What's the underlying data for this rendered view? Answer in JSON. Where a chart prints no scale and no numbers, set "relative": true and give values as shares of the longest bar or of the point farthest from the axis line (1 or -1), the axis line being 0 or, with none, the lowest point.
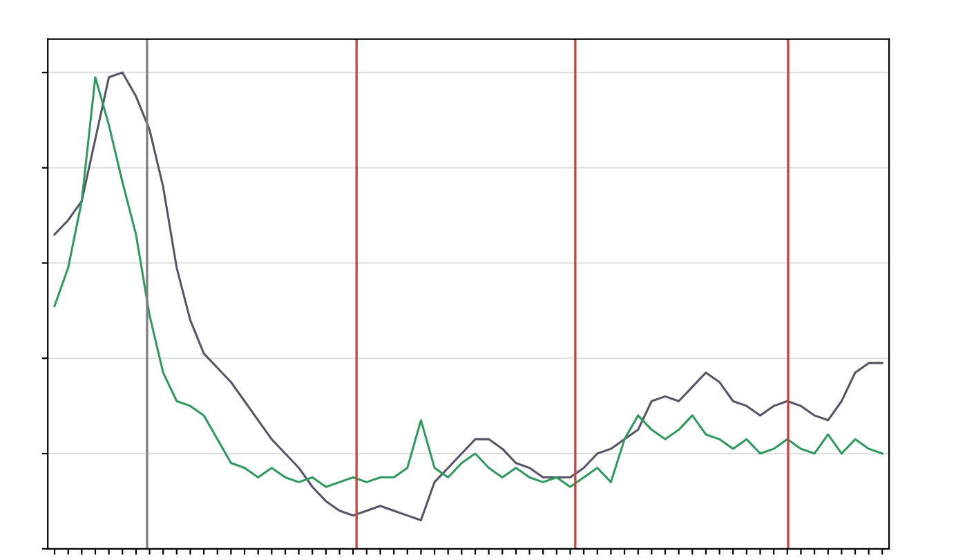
{
  "chart_data": {
    "type": "line",
    "relative": true,
    "grid": "y",
    "legend": false,
    "categories": [
      null,
      null,
      null,
      null,
      null,
      null,
      null,
      null,
      null,
      null,
      null,
      null,
      null,
      null,
      null,
      null,
      null,
      null,
      null,
      null,
      null,
      null,
      null,
      null,
      null,
      null,
      null,
      null,
      null,
      null,
      null,
      null,
      null,
      null,
      null,
      null,
      null,
      null,
      null,
      null,
      null,
      null,
      null,
      null,
      null,
      null,
      null,
      null,
      null,
      null,
      null,
      null,
      null,
      null,
      null,
      null,
      null,
      null,
      null,
      null,
      null,
      null
    ],
    "series": [
      {
        "color": "#555566",
        "values": [
          0.66,
          0.69,
          0.73,
          0.86,
          0.99,
          1,
          0.95,
          0.88,
          0.76,
          0.59,
          0.48,
          0.41,
          0.38,
          0.35,
          0.31,
          0.27,
          0.23,
          0.2,
          0.17,
          0.13,
          0.1,
          0.08,
          0.07,
          0.08,
          0.09,
          0.08,
          0.07,
          0.06,
          0.14,
          0.17,
          0.2,
          0.23,
          0.23,
          0.21,
          0.18,
          0.17,
          0.15,
          0.15,
          0.15,
          0.17,
          0.2,
          0.21,
          0.23,
          0.25,
          0.31,
          0.32,
          0.31,
          0.34,
          0.37,
          0.35,
          0.31,
          0.3,
          0.28,
          0.3,
          0.31,
          0.3,
          0.28,
          0.27,
          0.31,
          0.37,
          0.39,
          0.39
        ]
      },
      {
        "color": "#2e9a5e",
        "values": [
          0.51,
          0.59,
          0.73,
          0.99,
          0.89,
          0.77,
          0.66,
          0.49,
          0.37,
          0.31,
          0.3,
          0.28,
          0.23,
          0.18,
          0.17,
          0.15,
          0.17,
          0.15,
          0.14,
          0.15,
          0.13,
          0.14,
          0.15,
          0.14,
          0.15,
          0.15,
          0.17,
          0.27,
          0.17,
          0.15,
          0.18,
          0.2,
          0.17,
          0.15,
          0.17,
          0.15,
          0.14,
          0.15,
          0.13,
          0.15,
          0.17,
          0.14,
          0.23,
          0.28,
          0.25,
          0.23,
          0.25,
          0.28,
          0.24,
          0.23,
          0.21,
          0.23,
          0.2,
          0.21,
          0.23,
          0.21,
          0.2,
          0.24,
          0.2,
          0.23,
          0.21,
          0.2
        ]
      }
    ]
  }
}
